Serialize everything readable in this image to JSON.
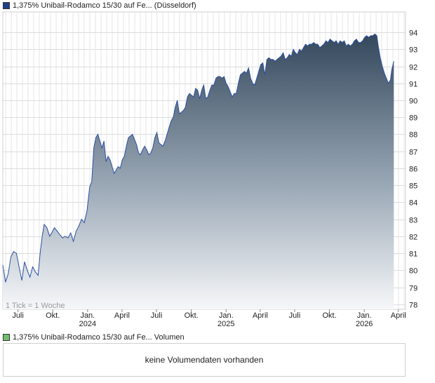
{
  "price_legend": {
    "label": "1,375% Unibail-Rodamco 15/30 auf Fe... (Düsseldorf)",
    "color": "#1f3f8f"
  },
  "volume_legend": {
    "label": "1,375% Unibail-Rodamco 15/30 auf Fe... Volumen",
    "color": "#6fbf6f"
  },
  "tick_note": "1 Tick = 1 Woche",
  "volume_message": "keine Volumendaten vorhanden",
  "chart_data": {
    "type": "area",
    "title": "1,375% Unibail-Rodamco 15/30 auf Fe... (Düsseldorf)",
    "x_start": "2023-05-22",
    "x_end": "2026-04-20",
    "x_ticks": [
      {
        "date": "2023-07-01",
        "label": "Juli",
        "year": ""
      },
      {
        "date": "2023-10-01",
        "label": "Okt.",
        "year": ""
      },
      {
        "date": "2024-01-01",
        "label": "Jan.",
        "year": "2024"
      },
      {
        "date": "2024-04-01",
        "label": "April",
        "year": ""
      },
      {
        "date": "2024-07-01",
        "label": "Juli",
        "year": ""
      },
      {
        "date": "2024-10-01",
        "label": "Okt.",
        "year": ""
      },
      {
        "date": "2025-01-01",
        "label": "Jan.",
        "year": "2025"
      },
      {
        "date": "2025-04-01",
        "label": "April",
        "year": ""
      },
      {
        "date": "2025-07-01",
        "label": "Juli",
        "year": ""
      },
      {
        "date": "2025-10-01",
        "label": "Okt.",
        "year": ""
      },
      {
        "date": "2026-01-01",
        "label": "Jan.",
        "year": "2026"
      },
      {
        "date": "2026-04-01",
        "label": "April",
        "year": ""
      }
    ],
    "y_ticks": [
      78,
      79,
      80,
      81,
      82,
      83,
      84,
      85,
      86,
      87,
      88,
      89,
      90,
      91,
      92,
      93,
      94
    ],
    "ylim": [
      77.7,
      95.2
    ],
    "grid": true,
    "series": [
      {
        "values": [
          [
            0,
            80.3
          ],
          [
            4,
            79.3
          ],
          [
            8,
            79.8
          ],
          [
            12,
            80.8
          ],
          [
            16,
            81.1
          ],
          [
            20,
            81.0
          ],
          [
            24,
            80.2
          ],
          [
            28,
            79.4
          ],
          [
            32,
            80.5
          ],
          [
            36,
            80.0
          ],
          [
            40,
            79.6
          ],
          [
            44,
            80.2
          ],
          [
            48,
            79.9
          ],
          [
            52,
            79.7
          ],
          [
            55,
            81.0
          ],
          [
            58,
            82.0
          ],
          [
            61,
            82.7
          ],
          [
            65,
            82.5
          ],
          [
            69,
            82.0
          ],
          [
            72,
            82.2
          ],
          [
            76,
            82.5
          ],
          [
            80,
            82.3
          ],
          [
            84,
            82.1
          ],
          [
            88,
            81.9
          ],
          [
            92,
            82.0
          ],
          [
            96,
            81.9
          ],
          [
            100,
            82.2
          ],
          [
            104,
            81.7
          ],
          [
            108,
            82.3
          ],
          [
            112,
            82.6
          ],
          [
            116,
            83.0
          ],
          [
            120,
            82.8
          ],
          [
            124,
            83.5
          ],
          [
            128,
            84.9
          ],
          [
            131,
            85.2
          ],
          [
            134,
            87.2
          ],
          [
            137,
            87.8
          ],
          [
            140,
            88.0
          ],
          [
            143,
            87.6
          ],
          [
            146,
            87.2
          ],
          [
            149,
            87.6
          ],
          [
            152,
            86.4
          ],
          [
            155,
            86.7
          ],
          [
            158,
            86.5
          ],
          [
            161,
            86.1
          ],
          [
            164,
            85.7
          ],
          [
            167,
            85.9
          ],
          [
            170,
            86.1
          ],
          [
            173,
            86.0
          ],
          [
            176,
            86.5
          ],
          [
            179,
            86.7
          ],
          [
            182,
            87.3
          ],
          [
            185,
            87.8
          ],
          [
            188,
            87.9
          ],
          [
            191,
            88.0
          ],
          [
            194,
            87.7
          ],
          [
            197,
            87.4
          ],
          [
            200,
            86.9
          ],
          [
            203,
            86.8
          ],
          [
            206,
            87.1
          ],
          [
            209,
            87.3
          ],
          [
            212,
            87.1
          ],
          [
            215,
            86.8
          ],
          [
            218,
            86.9
          ],
          [
            221,
            87.2
          ],
          [
            224,
            87.8
          ],
          [
            227,
            88.1
          ],
          [
            230,
            87.5
          ],
          [
            233,
            87.4
          ],
          [
            236,
            87.3
          ],
          [
            239,
            87.6
          ],
          [
            242,
            88.0
          ],
          [
            245,
            88.4
          ],
          [
            248,
            88.8
          ],
          [
            251,
            89.0
          ],
          [
            254,
            89.6
          ],
          [
            257,
            90.0
          ],
          [
            260,
            89.2
          ],
          [
            263,
            89.3
          ],
          [
            266,
            89.4
          ],
          [
            269,
            89.6
          ],
          [
            272,
            90.2
          ],
          [
            275,
            90.4
          ],
          [
            278,
            90.3
          ],
          [
            281,
            90.2
          ],
          [
            284,
            90.7
          ],
          [
            287,
            90.6
          ],
          [
            290,
            90.1
          ],
          [
            293,
            90.6
          ],
          [
            296,
            90.9
          ],
          [
            299,
            90.1
          ],
          [
            302,
            90.2
          ],
          [
            305,
            90.6
          ],
          [
            308,
            90.9
          ],
          [
            311,
            90.9
          ],
          [
            314,
            91.3
          ],
          [
            317,
            91.4
          ],
          [
            320,
            91.4
          ],
          [
            323,
            91.3
          ],
          [
            326,
            91.4
          ],
          [
            329,
            91.0
          ],
          [
            332,
            90.8
          ],
          [
            335,
            90.5
          ],
          [
            338,
            90.2
          ],
          [
            341,
            90.4
          ],
          [
            344,
            90.4
          ],
          [
            347,
            91.0
          ],
          [
            350,
            91.5
          ],
          [
            353,
            91.6
          ],
          [
            356,
            91.7
          ],
          [
            359,
            91.6
          ],
          [
            362,
            91.9
          ],
          [
            365,
            91.3
          ],
          [
            368,
            91.0
          ],
          [
            371,
            90.9
          ],
          [
            374,
            91.3
          ],
          [
            377,
            91.7
          ],
          [
            380,
            92.1
          ],
          [
            383,
            92.2
          ],
          [
            386,
            91.5
          ],
          [
            389,
            92.4
          ],
          [
            392,
            92.5
          ],
          [
            395,
            92.4
          ],
          [
            398,
            92.4
          ],
          [
            401,
            92.3
          ],
          [
            404,
            92.4
          ],
          [
            407,
            92.5
          ],
          [
            410,
            92.6
          ],
          [
            413,
            92.8
          ],
          [
            416,
            92.4
          ],
          [
            419,
            92.5
          ],
          [
            422,
            92.7
          ],
          [
            425,
            92.6
          ],
          [
            428,
            93.0
          ],
          [
            431,
            92.8
          ],
          [
            434,
            92.7
          ],
          [
            437,
            93.0
          ],
          [
            440,
            92.9
          ],
          [
            443,
            93.1
          ],
          [
            446,
            93.3
          ],
          [
            449,
            93.2
          ],
          [
            452,
            93.3
          ],
          [
            455,
            93.3
          ],
          [
            458,
            93.4
          ],
          [
            461,
            93.3
          ],
          [
            464,
            93.3
          ],
          [
            467,
            93.1
          ],
          [
            470,
            93.2
          ],
          [
            473,
            93.3
          ],
          [
            476,
            93.5
          ],
          [
            479,
            93.4
          ],
          [
            482,
            93.6
          ],
          [
            485,
            93.5
          ],
          [
            488,
            93.4
          ],
          [
            491,
            93.5
          ],
          [
            494,
            93.3
          ],
          [
            497,
            93.5
          ],
          [
            500,
            93.4
          ],
          [
            503,
            93.5
          ],
          [
            506,
            93.2
          ],
          [
            509,
            93.3
          ],
          [
            512,
            93.2
          ],
          [
            515,
            93.3
          ],
          [
            518,
            93.5
          ],
          [
            521,
            93.6
          ],
          [
            524,
            93.4
          ],
          [
            527,
            93.4
          ],
          [
            530,
            93.5
          ],
          [
            533,
            93.7
          ],
          [
            536,
            93.8
          ],
          [
            539,
            93.7
          ],
          [
            542,
            93.8
          ],
          [
            545,
            93.8
          ],
          [
            548,
            93.9
          ],
          [
            551,
            93.8
          ],
          [
            553,
            93.2
          ],
          [
            556,
            92.5
          ],
          [
            559,
            92.0
          ],
          [
            562,
            91.6
          ],
          [
            565,
            91.3
          ],
          [
            568,
            91.0
          ],
          [
            571,
            91.2
          ],
          [
            573,
            91.8
          ],
          [
            576,
            92.3
          ]
        ]
      }
    ]
  }
}
